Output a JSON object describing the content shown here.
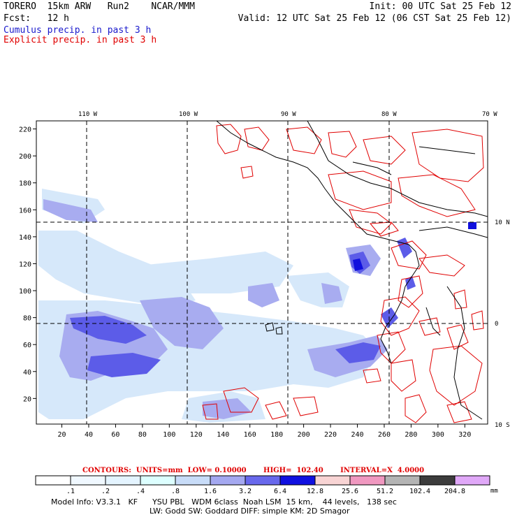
{
  "header": {
    "model_title": "TORERO  15km ARW   Run2    NCAR/MMM",
    "init": "Init: 00 UTC Sat 25 Feb 12",
    "fcst": "Fcst:   12 h",
    "valid": "Valid: 12 UTC Sat 25 Feb 12 (06 CST Sat 25 Feb 12)",
    "legend_cumulus": "Cumulus precip. in past 3 h",
    "legend_explicit": "Explicit precip. in past 3 h"
  },
  "map": {
    "top_lon_labels": [
      "110 W",
      "100 W",
      "90 W",
      "80 W",
      "70 W"
    ],
    "right_lat_labels": [
      "10 N",
      "0",
      "10 S"
    ],
    "y_ticks": [
      "20",
      "40",
      "60",
      "80",
      "100",
      "120",
      "140",
      "160",
      "180",
      "200",
      "220"
    ],
    "x_ticks": [
      "20",
      "40",
      "60",
      "80",
      "100",
      "120",
      "140",
      "160",
      "180",
      "200",
      "220",
      "240",
      "260",
      "280",
      "300",
      "320"
    ],
    "colors": {
      "explicit_contour": "#e00000",
      "coast": "#000000",
      "cumulus_light": "#d6e8fa",
      "cumulus_mid": "#a8acf0",
      "cumulus_dark": "#5c5ce8",
      "cumulus_max": "#1010dd"
    }
  },
  "contours_line": "CONTOURS:  UNITS=mm  LOW= 0.10000       HIGH=  102.40       INTERVAL=X  4.0000",
  "colorbar": {
    "labels": [
      ".1",
      ".2",
      ".4",
      ".8",
      "1.6",
      "3.2",
      "6.4",
      "12.8",
      "25.6",
      "51.2",
      "102.4",
      "204.8"
    ],
    "unit": "mm",
    "colors": [
      "#ffffff",
      "#f0f8ff",
      "#e4f4ff",
      "#ddffff",
      "#c8dcf8",
      "#a4a8f0",
      "#6868ec",
      "#1010e0",
      "#f8d4d4",
      "#f098c0",
      "#b4b4b4",
      "#3c3c3c",
      "#e0a8f8"
    ]
  },
  "footer": {
    "line1": "Model Info: V3.3.1   KF      YSU PBL   WDM 6class  Noah LSM  15 km,    44 levels,   138 sec",
    "line2": "LW: Godd SW: Goddard DIFF: simple KM: 2D Smagor"
  }
}
